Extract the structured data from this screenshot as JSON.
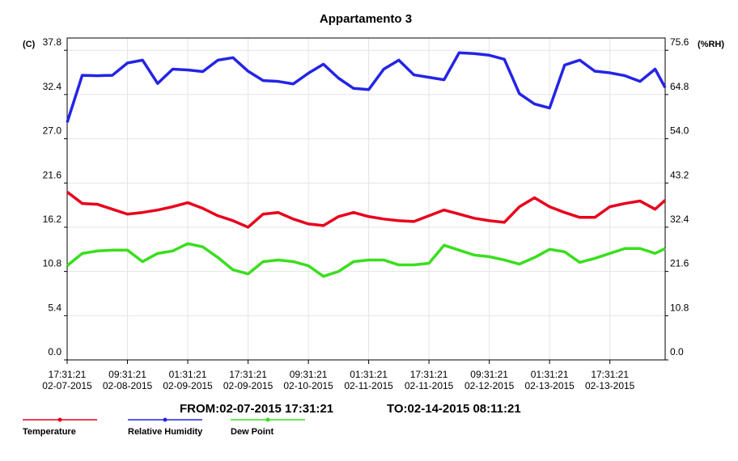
{
  "chart_data": {
    "type": "line",
    "title": "Appartamento 3",
    "ylabel": "(C)",
    "y2label": "(%RH)",
    "from_label": "FROM:02-07-2015 17:31:21",
    "to_label": "TO:02-14-2015 08:11:21",
    "grid": true,
    "x": [
      0,
      4,
      8,
      12,
      16,
      20,
      24,
      28,
      32,
      36,
      40,
      44,
      48,
      52,
      56,
      60,
      64,
      68,
      72,
      76,
      80,
      84,
      88,
      92,
      96,
      100,
      104,
      108,
      112,
      116,
      120,
      124,
      128,
      132,
      136,
      140,
      144,
      148,
      152,
      156,
      158.67
    ],
    "xlim": [
      0,
      158.67
    ],
    "xticks": [
      {
        "value": 0,
        "label": "17:31:21 02-07-2015"
      },
      {
        "value": 16,
        "label": "09:31:21 02-08-2015"
      },
      {
        "value": 32,
        "label": "01:31:21 02-09-2015"
      },
      {
        "value": 48,
        "label": "17:31:21 02-09-2015"
      },
      {
        "value": 64,
        "label": "09:31:21 02-10-2015"
      },
      {
        "value": 80,
        "label": "01:31:21 02-11-2015"
      },
      {
        "value": 96,
        "label": "17:31:21 02-11-2015"
      },
      {
        "value": 112,
        "label": "09:31:21 02-12-2015"
      },
      {
        "value": 128,
        "label": "01:31:21 02-13-2015"
      },
      {
        "value": 144,
        "label": "17:31:21 02-13-2015"
      }
    ],
    "ylim": [
      0,
      39.3
    ],
    "yticks": [
      {
        "value": 0,
        "label": "0.0"
      },
      5.4,
      10.8,
      16.2,
      21.6,
      {
        "value": 27,
        "label": "27.0"
      },
      32.4,
      37.8
    ],
    "y2lim": [
      0,
      78.6
    ],
    "y2ticks": [
      {
        "value": 0,
        "label": "0.0"
      },
      10.8,
      21.6,
      32.4,
      43.2,
      {
        "value": 54,
        "label": "54.0"
      },
      64.8,
      75.6
    ],
    "series": [
      {
        "name": "Temperature",
        "color": "#e8001c",
        "axis": "y",
        "values": [
          20.5,
          19.1,
          19.0,
          18.4,
          17.8,
          18.0,
          18.3,
          18.7,
          19.2,
          18.5,
          17.6,
          17.0,
          16.2,
          17.8,
          18.0,
          17.2,
          16.6,
          16.4,
          17.5,
          18.0,
          17.5,
          17.2,
          17.0,
          16.9,
          17.6,
          18.3,
          17.8,
          17.3,
          17.0,
          16.8,
          18.7,
          19.8,
          18.7,
          18.0,
          17.4,
          17.4,
          18.7,
          19.1,
          19.4,
          18.4,
          19.5
        ]
      },
      {
        "name": "Relative Humidity",
        "color": "#2424e6",
        "axis": "y2",
        "values": [
          58,
          69.5,
          69.4,
          69.5,
          72.5,
          73.2,
          67.5,
          71,
          70.8,
          70.4,
          73.2,
          73.8,
          70.5,
          68.2,
          68,
          67.4,
          70,
          72.2,
          68.8,
          66.3,
          66,
          71,
          73.2,
          69.6,
          69.0,
          68.4,
          75,
          74.8,
          74.4,
          73.4,
          65,
          62.5,
          61.5,
          72,
          73.2,
          70.5,
          70.1,
          69.4,
          68,
          71,
          66.5
        ]
      },
      {
        "name": "Dew Point",
        "color": "#3ade1e",
        "axis": "y",
        "values": [
          11.5,
          13.0,
          13.3,
          13.4,
          13.4,
          12.0,
          13.0,
          13.3,
          14.2,
          13.8,
          12.5,
          11.0,
          10.5,
          12.0,
          12.2,
          12.0,
          11.5,
          10.2,
          10.8,
          12.0,
          12.2,
          12.2,
          11.6,
          11.6,
          11.8,
          14.0,
          13.4,
          12.8,
          12.6,
          12.2,
          11.7,
          12.5,
          13.5,
          13.2,
          11.9,
          12.4,
          13.0,
          13.6,
          13.6,
          13.0,
          13.6
        ]
      }
    ]
  }
}
